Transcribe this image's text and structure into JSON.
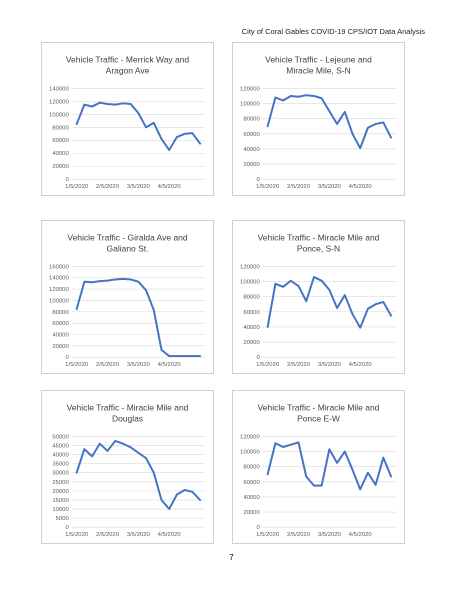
{
  "header": {
    "title": "City of Coral Gables COVID-19 CPS/IOT Data Analysis"
  },
  "footer": {
    "page_number": "7"
  },
  "colors": {
    "series": "#4472c4",
    "grid": "#d9d9d9",
    "axis_text": "#595959",
    "title": "#404040"
  },
  "chart_data": [
    {
      "type": "line",
      "title_lines": [
        "Vehicle Traffic - Merrick Way and",
        "Aragon Ave"
      ],
      "y_ticks": [
        "0",
        "20000",
        "40000",
        "60000",
        "80000",
        "100000",
        "120000",
        "140000"
      ],
      "ylim": [
        0,
        140000
      ],
      "x_ticks": [
        "1/5/2020",
        "2/5/2020",
        "3/5/2020",
        "4/5/2020"
      ],
      "series": [
        {
          "values": [
            85000,
            115000,
            112000,
            118000,
            116000,
            115000,
            117000,
            116000,
            102000,
            80000,
            87000,
            62000,
            45000,
            65000,
            70000,
            71000,
            55000
          ]
        }
      ]
    },
    {
      "type": "line",
      "title_lines": [
        "Vehicle Traffic - Lejeune and",
        "Miracle Mile, S-N"
      ],
      "y_ticks": [
        "0",
        "20000",
        "40000",
        "60000",
        "80000",
        "100000",
        "120000"
      ],
      "ylim": [
        0,
        120000
      ],
      "x_ticks": [
        "1/5/2020",
        "2/5/2020",
        "3/5/2020",
        "4/5/2020"
      ],
      "series": [
        {
          "values": [
            70000,
            108000,
            104000,
            110000,
            109000,
            111000,
            110000,
            107000,
            90000,
            73000,
            89000,
            60000,
            41000,
            68000,
            73000,
            75000,
            55000
          ]
        }
      ]
    },
    {
      "type": "line",
      "title_lines": [
        "Vehicle Traffic - Giralda Ave and",
        "Galiano St."
      ],
      "y_ticks": [
        "0",
        "20000",
        "40000",
        "60000",
        "80000",
        "100000",
        "120000",
        "140000",
        "160000"
      ],
      "ylim": [
        0,
        160000
      ],
      "x_ticks": [
        "1/5/2020",
        "2/5/2020",
        "3/5/2020",
        "4/5/2020"
      ],
      "series": [
        {
          "values": [
            85000,
            133000,
            132000,
            134000,
            135000,
            137000,
            138000,
            137000,
            133000,
            118000,
            83000,
            13000,
            2000,
            2000,
            2000,
            2000,
            2000
          ]
        }
      ]
    },
    {
      "type": "line",
      "title_lines": [
        "Vehicle Traffic - Miracle Mile and",
        "Ponce, S-N"
      ],
      "y_ticks": [
        "0",
        "20000",
        "40000",
        "60000",
        "80000",
        "100000",
        "120000"
      ],
      "ylim": [
        0,
        120000
      ],
      "x_ticks": [
        "1/5/2020",
        "2/5/2020",
        "3/5/2020",
        "4/5/2020"
      ],
      "series": [
        {
          "values": [
            40000,
            97000,
            93000,
            101000,
            94000,
            74000,
            106000,
            101000,
            89000,
            65000,
            82000,
            57000,
            39000,
            64000,
            70000,
            73000,
            55000
          ]
        }
      ]
    },
    {
      "type": "line",
      "title_lines": [
        "Vehicle Traffic - Miracle Mile and",
        "Douglas"
      ],
      "y_ticks": [
        "0",
        "5000",
        "10000",
        "15000",
        "20000",
        "25000",
        "30000",
        "35000",
        "40000",
        "45000",
        "50000"
      ],
      "ylim": [
        0,
        50000
      ],
      "x_ticks": [
        "1/5/2020",
        "2/5/2020",
        "3/5/2020",
        "4/5/2020"
      ],
      "series": [
        {
          "values": [
            30000,
            43000,
            39000,
            46000,
            42000,
            47500,
            46000,
            44000,
            41000,
            38000,
            30000,
            15000,
            10000,
            18000,
            20500,
            19500,
            15000
          ]
        }
      ]
    },
    {
      "type": "line",
      "title_lines": [
        "Vehicle Traffic - Miracle Mile and",
        "Ponce E-W"
      ],
      "y_ticks": [
        "0",
        "20000",
        "40000",
        "60000",
        "80000",
        "100000",
        "120000"
      ],
      "ylim": [
        0,
        120000
      ],
      "x_ticks": [
        "1/5/2020",
        "2/5/2020",
        "3/5/2020",
        "4/5/2020"
      ],
      "series": [
        {
          "values": [
            70000,
            111000,
            106000,
            109000,
            112000,
            67000,
            55000,
            55000,
            103000,
            85000,
            100000,
            76000,
            50000,
            72000,
            56000,
            92000,
            67000
          ]
        }
      ]
    }
  ]
}
